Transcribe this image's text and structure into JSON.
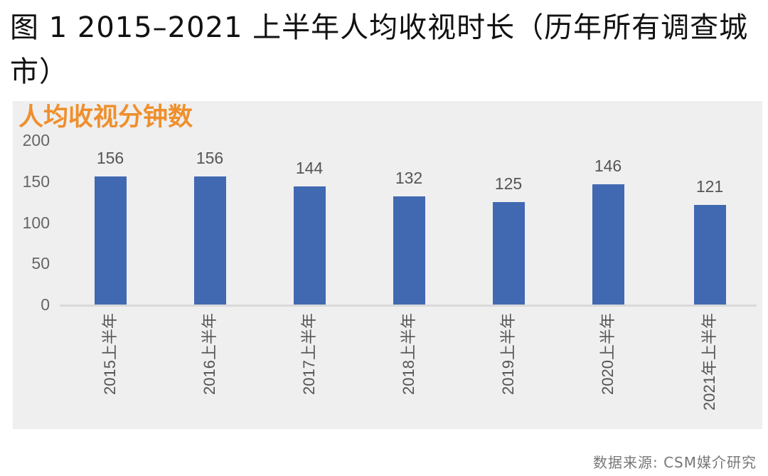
{
  "figure": {
    "title": "图 1  2015–2021 上半年人均收视时长（历年所有调查城市）",
    "source": "数据来源: CSM媒介研究"
  },
  "colors": {
    "bar": "#4169b1",
    "panel_background": "#efefef",
    "panel_title": "#ef8f2c",
    "axis_text": "#666666"
  },
  "chart_data": {
    "type": "bar",
    "title": "人均收视分钟数",
    "xlabel": "",
    "ylabel": "人均收视分钟数",
    "ylim": [
      0,
      200
    ],
    "yticks": [
      0,
      50,
      100,
      150,
      200
    ],
    "grid": false,
    "legend": null,
    "categories": [
      "2015上半年",
      "2016上半年",
      "2017上半年",
      "2018上半年",
      "2019上半年",
      "2020上半年",
      "2021年上半年"
    ],
    "values": [
      156,
      156,
      144,
      132,
      125,
      146,
      121
    ],
    "data_labels": [
      "156",
      "156",
      "144",
      "132",
      "125",
      "146",
      "121"
    ]
  }
}
